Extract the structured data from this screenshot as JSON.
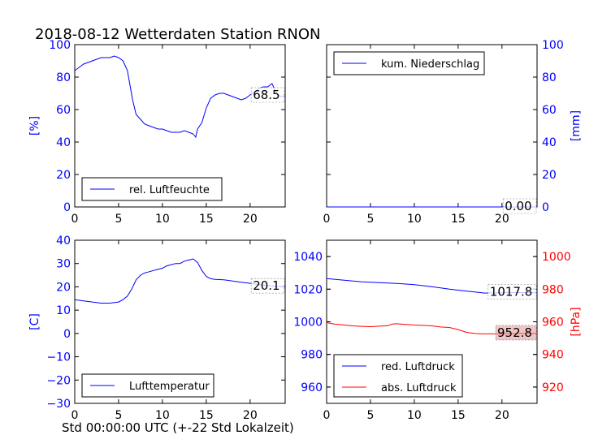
{
  "title": "2018-08-12 Wetterdaten Station RNON",
  "xlabel": "Std 00:00:00 UTC (+-22 Std Lokalzeit)",
  "colors": {
    "blue": "#0000ff",
    "red": "#ff0000",
    "black": "#000000"
  },
  "chart_data": [
    {
      "type": "line",
      "panel": "top-left",
      "ylabel": "[%]",
      "ylim": [
        0,
        100
      ],
      "yticks": [
        "0",
        "20",
        "40",
        "60",
        "80",
        "100"
      ],
      "xlim": [
        0,
        24
      ],
      "xticks": [
        "0",
        "5",
        "10",
        "15",
        "20"
      ],
      "legend": {
        "placement": "lower-left",
        "entries": [
          "rel. Luftfeuchte"
        ]
      },
      "value_label": "68.5",
      "series": [
        {
          "name": "rel. Luftfeuchte",
          "color": "#0000ff",
          "x": [
            0,
            0.5,
            1,
            1.5,
            2,
            2.5,
            3,
            3.5,
            4,
            4.5,
            5,
            5.5,
            6,
            6.3,
            6.6,
            7,
            7.5,
            8,
            8.5,
            9,
            9.5,
            10,
            10.5,
            11,
            11.5,
            12,
            12.5,
            13,
            13.5,
            13.8,
            14,
            14.5,
            15,
            15.5,
            16,
            16.5,
            17,
            17.5,
            18,
            18.5,
            19,
            19.5,
            20,
            20.5,
            21,
            21.5,
            22,
            22.5,
            23,
            23.5,
            24
          ],
          "values": [
            84,
            86,
            88,
            89,
            90,
            91,
            92,
            92,
            92,
            93,
            92,
            90,
            84,
            75,
            66,
            57,
            54,
            51,
            50,
            49,
            48,
            48,
            47,
            46,
            46,
            46,
            47,
            46,
            45,
            43,
            48,
            52,
            61,
            67,
            69,
            70,
            70,
            69,
            68,
            67,
            66,
            67,
            69,
            71,
            73,
            74,
            74,
            76,
            70,
            68,
            68.5
          ]
        }
      ]
    },
    {
      "type": "line",
      "panel": "top-right",
      "ylabel": "[mm]",
      "ylim": [
        0,
        100
      ],
      "yticks": [
        "0",
        "20",
        "40",
        "60",
        "80",
        "100"
      ],
      "xlim": [
        0,
        24
      ],
      "xticks": [
        "0",
        "5",
        "10",
        "15",
        "20"
      ],
      "legend": {
        "placement": "upper-left",
        "entries": [
          "kum. Niederschlag"
        ]
      },
      "value_label": "0.00",
      "series": [
        {
          "name": "kum. Niederschlag",
          "color": "#0000ff",
          "x": [
            0,
            24
          ],
          "values": [
            0,
            0
          ]
        }
      ]
    },
    {
      "type": "line",
      "panel": "bottom-left",
      "ylabel": "[C]",
      "ylim": [
        -30,
        40
      ],
      "yticks": [
        "−30",
        "−20",
        "−10",
        "0",
        "10",
        "20",
        "30",
        "40"
      ],
      "xlim": [
        0,
        24
      ],
      "xticks": [
        "0",
        "5",
        "10",
        "15",
        "20"
      ],
      "legend": {
        "placement": "lower-left",
        "entries": [
          "Lufttemperatur"
        ]
      },
      "value_label": "20.1",
      "series": [
        {
          "name": "Lufttemperatur",
          "color": "#0000ff",
          "x": [
            0,
            1,
            2,
            3,
            4,
            5,
            5.5,
            6,
            6.5,
            7,
            7.5,
            8,
            8.5,
            9,
            9.5,
            10,
            10.5,
            11,
            11.5,
            12,
            12.5,
            13,
            13.5,
            14,
            14.5,
            15,
            15.5,
            16,
            17,
            18,
            19,
            20,
            21,
            22,
            23,
            24
          ],
          "values": [
            14.5,
            14,
            13.5,
            13,
            13,
            13.5,
            14.5,
            16,
            19,
            23,
            25,
            26,
            26.5,
            27,
            27.5,
            28,
            29,
            29.5,
            30,
            30,
            31,
            31.5,
            32,
            30.5,
            27,
            24.5,
            23.5,
            23.2,
            23,
            22.5,
            22,
            21.5,
            21,
            20.5,
            20.3,
            20.1
          ]
        }
      ]
    },
    {
      "type": "line",
      "panel": "bottom-right",
      "ylabel": "[hPa]",
      "ylim_left": [
        950,
        1050
      ],
      "yticks_left": [
        "960",
        "980",
        "1000",
        "1020",
        "1040"
      ],
      "ylim_right": [
        910,
        1010
      ],
      "yticks_right": [
        "920",
        "940",
        "960",
        "980",
        "1000"
      ],
      "xlim": [
        0,
        24
      ],
      "xticks": [
        "0",
        "5",
        "10",
        "15",
        "20"
      ],
      "legend": {
        "placement": "lower-left",
        "entries": [
          "red. Luftdruck",
          "abs. Luftdruck"
        ]
      },
      "value_labels": [
        "1017.8",
        "952.8"
      ],
      "series": [
        {
          "name": "red. Luftdruck",
          "color": "#0000ff",
          "axis": "left",
          "x": [
            0,
            2,
            4,
            6,
            8,
            10,
            12,
            14,
            16,
            17,
            18,
            20,
            22,
            24
          ],
          "values": [
            1026.5,
            1025.5,
            1024.5,
            1024,
            1023.5,
            1022.8,
            1021.5,
            1020,
            1018.8,
            1018.2,
            1017.6,
            1017.8,
            1017.9,
            1017.8
          ]
        },
        {
          "name": "abs. Luftdruck",
          "color": "#ff0000",
          "axis": "right",
          "x": [
            0,
            1,
            2,
            3,
            4,
            5,
            6,
            7,
            7.5,
            8,
            9,
            10,
            11,
            12,
            13,
            14,
            15,
            16,
            17,
            18,
            19,
            20,
            21,
            22,
            23,
            24
          ],
          "values": [
            959.5,
            958.5,
            958,
            957.5,
            957.2,
            957,
            957.3,
            957.6,
            958.6,
            958.8,
            958.4,
            958,
            957.8,
            957.5,
            956.8,
            956.5,
            955.2,
            953.5,
            952.8,
            952.6,
            952.7,
            952.7,
            952.8,
            952.9,
            952.9,
            952.8
          ]
        }
      ]
    }
  ]
}
